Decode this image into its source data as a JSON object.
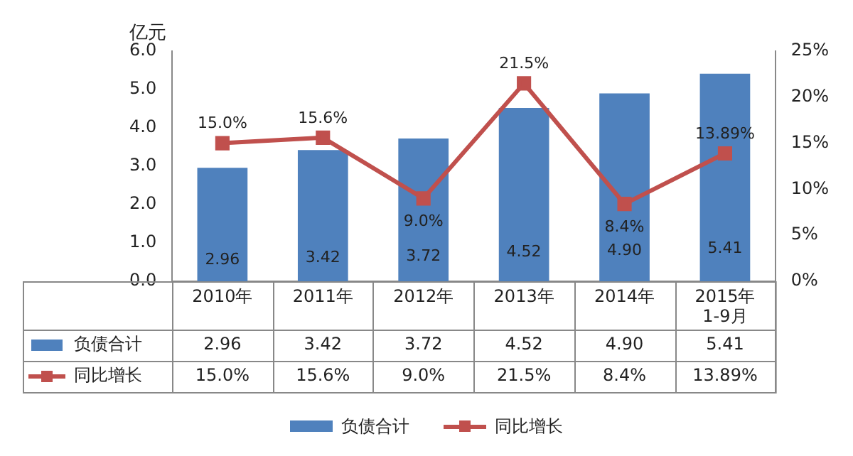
{
  "chart_data": {
    "type": "bar",
    "ylabel": "亿元",
    "categories": [
      "2010年",
      "2011年",
      "2012年",
      "2013年",
      "2014年",
      "2015年 1-9月"
    ],
    "series": [
      {
        "name": "负债合计",
        "color": "#4f81bd",
        "values": [
          2.96,
          3.42,
          3.72,
          4.52,
          4.9,
          5.41
        ],
        "value_labels": [
          "2.96",
          "3.42",
          "3.72",
          "4.52",
          "4.90",
          "5.41"
        ]
      },
      {
        "name": "同比增长",
        "type": "line",
        "axis": "y2",
        "color": "#c0504d",
        "marker": "square",
        "values": [
          15.0,
          15.6,
          9.0,
          21.5,
          8.4,
          13.89
        ],
        "value_labels": [
          "15.0%",
          "15.6%",
          "9.0%",
          "21.5%",
          "8.4%",
          "13.89%"
        ]
      }
    ],
    "ylim": [
      0,
      6
    ],
    "yticks": [
      {
        "value": 0,
        "label": "0.0"
      },
      {
        "value": 1,
        "label": "1.0"
      },
      {
        "value": 2,
        "label": "2.0"
      },
      {
        "value": 3,
        "label": "3.0"
      },
      {
        "value": 4,
        "label": "4.0"
      },
      {
        "value": 5,
        "label": "5.0"
      },
      {
        "value": 6,
        "label": "6.0"
      }
    ],
    "y2lim": [
      0,
      25
    ],
    "y2ticks": [
      {
        "value": 0,
        "label": "0%"
      },
      {
        "value": 5,
        "label": "5%"
      },
      {
        "value": 10,
        "label": "10%"
      },
      {
        "value": 15,
        "label": "15%"
      },
      {
        "value": 20,
        "label": "20%"
      },
      {
        "value": 25,
        "label": "25%"
      }
    ],
    "grid": false,
    "legend": "bottom"
  }
}
